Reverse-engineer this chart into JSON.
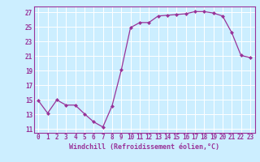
{
  "x": [
    0,
    1,
    2,
    3,
    4,
    5,
    6,
    7,
    8,
    9,
    10,
    11,
    12,
    13,
    14,
    15,
    16,
    17,
    18,
    19,
    20,
    21,
    22,
    23
  ],
  "y": [
    14.9,
    13.2,
    15.0,
    14.3,
    14.3,
    13.1,
    12.0,
    11.3,
    14.2,
    19.1,
    24.9,
    25.6,
    25.6,
    26.5,
    26.6,
    26.7,
    26.8,
    27.1,
    27.1,
    26.9,
    26.5,
    24.2,
    21.1,
    20.8
  ],
  "line_color": "#993399",
  "marker": "D",
  "markersize": 2.0,
  "linewidth": 0.9,
  "background_color": "#cceeff",
  "grid_color": "#ffffff",
  "xlabel": "Windchill (Refroidissement éolien,°C)",
  "xlim": [
    -0.5,
    23.5
  ],
  "ylim": [
    10.5,
    27.8
  ],
  "yticks": [
    11,
    13,
    15,
    17,
    19,
    21,
    23,
    25,
    27
  ],
  "xticks": [
    0,
    1,
    2,
    3,
    4,
    5,
    6,
    7,
    8,
    9,
    10,
    11,
    12,
    13,
    14,
    15,
    16,
    17,
    18,
    19,
    20,
    21,
    22,
    23
  ],
  "tick_fontsize": 5.5,
  "label_fontsize": 6.0
}
